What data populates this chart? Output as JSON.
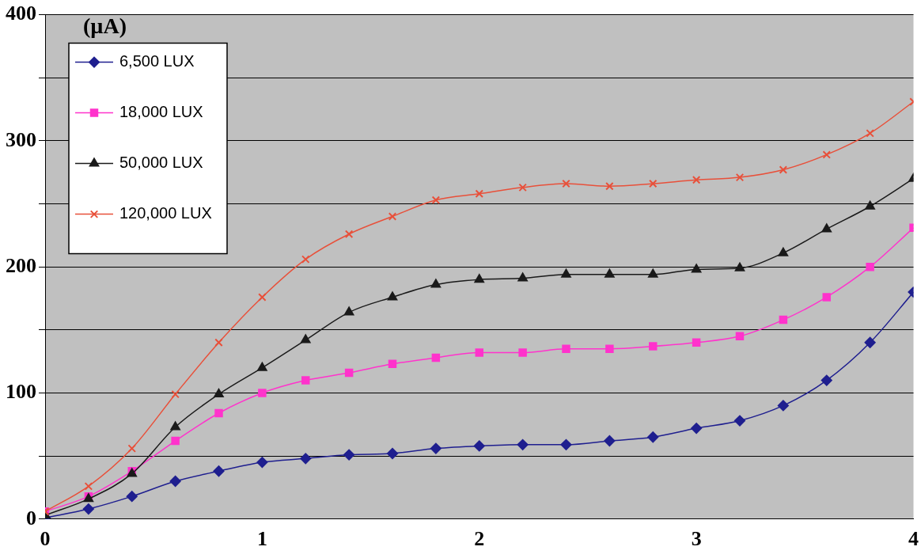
{
  "chart_data": {
    "type": "line",
    "ylabel": "(µA)",
    "x": [
      0,
      0.2,
      0.4,
      0.6,
      0.8,
      1.0,
      1.2,
      1.4,
      1.6,
      1.8,
      2.0,
      2.2,
      2.4,
      2.6,
      2.8,
      3.0,
      3.2,
      3.4,
      3.6,
      3.8,
      4.0
    ],
    "series": [
      {
        "name": "6,500 LUX",
        "color": "#1f1f8f",
        "marker": "diamond",
        "values": [
          1,
          8,
          18,
          30,
          38,
          45,
          48,
          51,
          52,
          56,
          58,
          59,
          59,
          62,
          65,
          72,
          78,
          90,
          110,
          140,
          180
        ]
      },
      {
        "name": "18,000 LUX",
        "color": "#ff33cc",
        "marker": "square",
        "values": [
          6,
          18,
          38,
          62,
          84,
          100,
          110,
          116,
          123,
          128,
          132,
          132,
          135,
          135,
          137,
          140,
          145,
          158,
          176,
          200,
          231
        ]
      },
      {
        "name": "50,000 LUX",
        "color": "#1a1a1a",
        "marker": "triangle",
        "values": [
          3,
          16,
          36,
          73,
          99,
          120,
          142,
          164,
          176,
          186,
          190,
          191,
          194,
          194,
          194,
          198,
          199,
          211,
          230,
          248,
          270
        ]
      },
      {
        "name": "120,000 LUX",
        "color": "#e8503a",
        "marker": "cross",
        "values": [
          6,
          26,
          56,
          99,
          140,
          176,
          206,
          226,
          240,
          253,
          258,
          263,
          266,
          264,
          266,
          269,
          271,
          277,
          289,
          306,
          331
        ]
      }
    ],
    "xlim": [
      0,
      4
    ],
    "xticks": [
      0,
      1,
      2,
      3,
      4
    ],
    "ylim": [
      0,
      400
    ],
    "yticks": [
      0,
      {
        "value": 50,
        "label": null
      },
      100,
      {
        "value": 150,
        "label": null
      },
      200,
      {
        "value": 250,
        "label": null
      },
      300,
      {
        "value": 350,
        "label": null
      },
      400
    ],
    "grid": "y",
    "legend": "top left"
  }
}
